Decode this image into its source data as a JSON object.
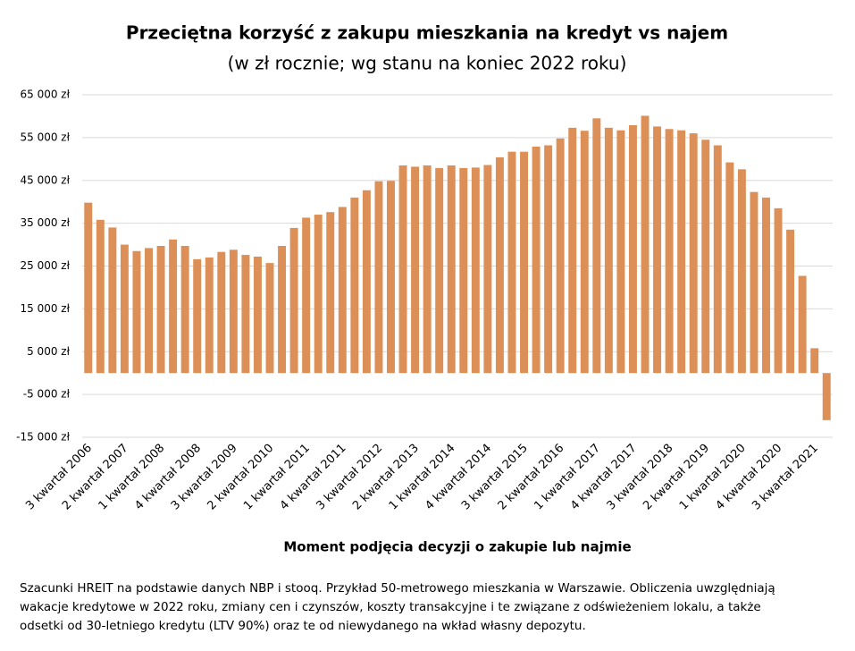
{
  "chart_data": {
    "type": "bar",
    "title": "Przeciętna korzyść z zakupu mieszkania na kredyt vs najem",
    "subtitle": "(w zł rocznie; wg stanu na koniec 2022 roku)",
    "x_label": "Moment podjęcia decyzji o zakupie lub najmie",
    "note_lines": [
      "Szacunki HREIT na podstawie danych NBP i stooq. Przykład 50-metrowego mieszkania w Warszawie. Obliczenia uwzględniają",
      "wakacje kredytowe w 2022 roku, zmiany cen i czynszów, koszty transakcyjne i te związane z odświeżeniem lokalu, a także",
      "odsetki od 30-letniego kredytu (LTV 90%) oraz te od niewydanego na wkład własny depozytu."
    ],
    "color": "#dc8f56",
    "grid": true,
    "categories": [
      "3 kwartał 2006",
      null,
      null,
      "2 kwartał 2007",
      null,
      null,
      "1 kwartał 2008",
      null,
      null,
      "4 kwartał 2008",
      null,
      null,
      "3 kwartał 2009",
      null,
      null,
      "2 kwartał 2010",
      null,
      null,
      "1 kwartał 2011",
      null,
      null,
      "4 kwartał 2011",
      null,
      null,
      "3 kwartał 2012",
      null,
      null,
      "2 kwartał 2013",
      null,
      null,
      "1 kwartał 2014",
      null,
      null,
      "4 kwartał 2014",
      null,
      null,
      "3 kwartał 2015",
      null,
      null,
      "2 kwartał 2016",
      null,
      null,
      "1 kwartał 2017",
      null,
      null,
      "4 kwartał 2017",
      null,
      null,
      "3 kwartał 2018",
      null,
      null,
      "2 kwartał 2019",
      null,
      null,
      "1 kwartał 2020",
      null,
      null,
      "4 kwartał 2020",
      null,
      null,
      "3 kwartał 2021",
      null
    ],
    "values": [
      39800,
      35800,
      34000,
      30000,
      28500,
      29200,
      29700,
      31200,
      29700,
      26600,
      27000,
      28300,
      28800,
      27600,
      27200,
      25700,
      29700,
      33900,
      36300,
      37000,
      37600,
      38800,
      41000,
      42700,
      44800,
      44900,
      48500,
      48200,
      48500,
      47900,
      48500,
      47900,
      48000,
      48600,
      50400,
      51700,
      51700,
      52900,
      53200,
      54800,
      57300,
      56600,
      59500,
      57300,
      56700,
      57900,
      60100,
      57600,
      57000,
      56700,
      56000,
      54500,
      53200,
      49200,
      47600,
      42300,
      41000,
      38500,
      33500,
      22700,
      5800,
      -11000
    ],
    "ylim": [
      -15000,
      65000
    ],
    "yticks": [
      {
        "value": -15000,
        "label": "-15 000 zł"
      },
      {
        "value": -5000,
        "label": "-5 000 zł"
      },
      {
        "value": 5000,
        "label": "5 000 zł"
      },
      {
        "value": 15000,
        "label": "15 000 zł"
      },
      {
        "value": 25000,
        "label": "25 000 zł"
      },
      {
        "value": 35000,
        "label": "35 000 zł"
      },
      {
        "value": 45000,
        "label": "45 000 zł"
      },
      {
        "value": 55000,
        "label": "55 000 zł"
      },
      {
        "value": 65000,
        "label": "65 000 zł"
      }
    ]
  }
}
